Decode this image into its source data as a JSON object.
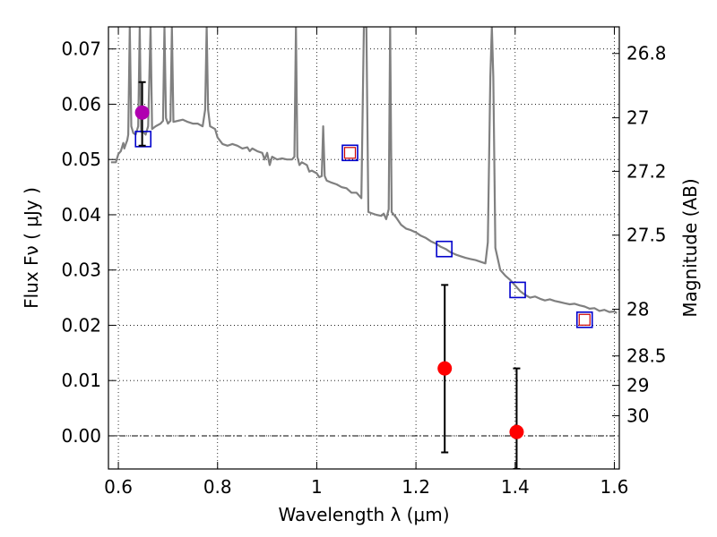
{
  "chart_data": {
    "type": "scatter",
    "xlabel": "Wavelength  λ (μm)",
    "ylabel": "Flux  Fν  ( μJy )",
    "y2label": "Magnitude (AB)",
    "xlim": [
      0.58,
      1.61
    ],
    "ylim": [
      -0.006,
      0.074
    ],
    "grid": true,
    "x_ticks": [
      0.6,
      0.8,
      1.0,
      1.2,
      1.4,
      1.6
    ],
    "x_tick_labels": [
      "0.6",
      "0.8",
      "1",
      "1.2",
      "1.4",
      "1.6"
    ],
    "y_ticks": [
      0.0,
      0.01,
      0.02,
      0.03,
      0.04,
      0.05,
      0.06,
      0.07
    ],
    "y_tick_labels": [
      "0.00",
      "0.01",
      "0.02",
      "0.03",
      "0.04",
      "0.05",
      "0.06",
      "0.07"
    ],
    "mag_ticks": [
      "26.8",
      "27",
      "27.2",
      "27.5",
      "28",
      "28.5",
      "29",
      "30"
    ],
    "colors": {
      "model": "#808080",
      "model_phot": "#0000cc",
      "model_phot_inner": "#cc0000",
      "detection": "#b000b0",
      "nondetection": "#ff0000",
      "errorbar": "#000000"
    },
    "series": [
      {
        "kind": "line",
        "points": [
          [
            0.585,
            0.0495
          ],
          [
            0.595,
            0.0495
          ],
          [
            0.6,
            0.051
          ],
          [
            0.605,
            0.0515
          ],
          [
            0.61,
            0.053
          ],
          [
            0.612,
            0.052
          ],
          [
            0.615,
            0.0528
          ],
          [
            0.618,
            0.0535
          ],
          [
            0.62,
            0.0545
          ],
          [
            0.623,
            0.074
          ],
          [
            0.626,
            0.056
          ],
          [
            0.63,
            0.0548
          ],
          [
            0.635,
            0.0545
          ],
          [
            0.64,
            0.056
          ],
          [
            0.643,
            0.074
          ],
          [
            0.646,
            0.055
          ],
          [
            0.65,
            0.055
          ],
          [
            0.655,
            0.0545
          ],
          [
            0.66,
            0.056
          ],
          [
            0.665,
            0.074
          ],
          [
            0.668,
            0.0555
          ],
          [
            0.675,
            0.056
          ],
          [
            0.685,
            0.0565
          ],
          [
            0.69,
            0.057
          ],
          [
            0.693,
            0.074
          ],
          [
            0.696,
            0.0575
          ],
          [
            0.7,
            0.0565
          ],
          [
            0.705,
            0.057
          ],
          [
            0.708,
            0.074
          ],
          [
            0.711,
            0.0568
          ],
          [
            0.72,
            0.057
          ],
          [
            0.73,
            0.0572
          ],
          [
            0.74,
            0.0568
          ],
          [
            0.75,
            0.0565
          ],
          [
            0.76,
            0.0565
          ],
          [
            0.77,
            0.056
          ],
          [
            0.775,
            0.059
          ],
          [
            0.778,
            0.074
          ],
          [
            0.781,
            0.059
          ],
          [
            0.785,
            0.056
          ],
          [
            0.795,
            0.0555
          ],
          [
            0.8,
            0.054
          ],
          [
            0.81,
            0.0528
          ],
          [
            0.82,
            0.0525
          ],
          [
            0.83,
            0.0528
          ],
          [
            0.84,
            0.0525
          ],
          [
            0.85,
            0.052
          ],
          [
            0.86,
            0.0522
          ],
          [
            0.865,
            0.0515
          ],
          [
            0.87,
            0.052
          ],
          [
            0.88,
            0.0515
          ],
          [
            0.89,
            0.0512
          ],
          [
            0.895,
            0.05
          ],
          [
            0.9,
            0.0512
          ],
          [
            0.905,
            0.049
          ],
          [
            0.91,
            0.0505
          ],
          [
            0.92,
            0.05
          ],
          [
            0.93,
            0.0502
          ],
          [
            0.94,
            0.05
          ],
          [
            0.95,
            0.05
          ],
          [
            0.955,
            0.0505
          ],
          [
            0.958,
            0.074
          ],
          [
            0.961,
            0.0505
          ],
          [
            0.965,
            0.049
          ],
          [
            0.97,
            0.0495
          ],
          [
            0.98,
            0.049
          ],
          [
            0.985,
            0.0478
          ],
          [
            0.99,
            0.048
          ],
          [
            1.0,
            0.0475
          ],
          [
            1.005,
            0.0468
          ],
          [
            1.01,
            0.047
          ],
          [
            1.013,
            0.056
          ],
          [
            1.016,
            0.047
          ],
          [
            1.02,
            0.0462
          ],
          [
            1.03,
            0.0458
          ],
          [
            1.04,
            0.0455
          ],
          [
            1.05,
            0.045
          ],
          [
            1.06,
            0.0448
          ],
          [
            1.07,
            0.044
          ],
          [
            1.08,
            0.044
          ],
          [
            1.085,
            0.0435
          ],
          [
            1.09,
            0.043
          ],
          [
            1.095,
            0.074
          ],
          [
            1.1,
            0.074
          ],
          [
            1.104,
            0.0405
          ],
          [
            1.11,
            0.0403
          ],
          [
            1.12,
            0.04
          ],
          [
            1.13,
            0.0398
          ],
          [
            1.135,
            0.0402
          ],
          [
            1.14,
            0.0392
          ],
          [
            1.145,
            0.041
          ],
          [
            1.148,
            0.074
          ],
          [
            1.151,
            0.0405
          ],
          [
            1.16,
            0.0395
          ],
          [
            1.17,
            0.0382
          ],
          [
            1.18,
            0.0375
          ],
          [
            1.19,
            0.0372
          ],
          [
            1.2,
            0.0368
          ],
          [
            1.21,
            0.0362
          ],
          [
            1.22,
            0.0358
          ],
          [
            1.23,
            0.0352
          ],
          [
            1.24,
            0.0348
          ],
          [
            1.25,
            0.0342
          ],
          [
            1.26,
            0.0338
          ],
          [
            1.27,
            0.0332
          ],
          [
            1.28,
            0.0328
          ],
          [
            1.29,
            0.0325
          ],
          [
            1.3,
            0.0322
          ],
          [
            1.31,
            0.032
          ],
          [
            1.32,
            0.0318
          ],
          [
            1.33,
            0.0315
          ],
          [
            1.34,
            0.0312
          ],
          [
            1.345,
            0.035
          ],
          [
            1.35,
            0.065
          ],
          [
            1.353,
            0.074
          ],
          [
            1.356,
            0.065
          ],
          [
            1.36,
            0.034
          ],
          [
            1.37,
            0.03
          ],
          [
            1.38,
            0.029
          ],
          [
            1.39,
            0.0282
          ],
          [
            1.4,
            0.0272
          ],
          [
            1.41,
            0.0262
          ],
          [
            1.42,
            0.0255
          ],
          [
            1.43,
            0.025
          ],
          [
            1.44,
            0.0252
          ],
          [
            1.45,
            0.0248
          ],
          [
            1.46,
            0.0245
          ],
          [
            1.47,
            0.0247
          ],
          [
            1.48,
            0.0244
          ],
          [
            1.49,
            0.0242
          ],
          [
            1.5,
            0.024
          ],
          [
            1.51,
            0.0238
          ],
          [
            1.52,
            0.0239
          ],
          [
            1.53,
            0.0236
          ],
          [
            1.54,
            0.0234
          ],
          [
            1.55,
            0.023
          ],
          [
            1.56,
            0.0231
          ],
          [
            1.57,
            0.0226
          ],
          [
            1.58,
            0.0228
          ],
          [
            1.59,
            0.0224
          ],
          [
            1.6,
            0.0225
          ],
          [
            1.605,
            0.0222
          ]
        ]
      },
      {
        "kind": "model_photometry",
        "points": [
          {
            "x": 0.65,
            "y": 0.0537,
            "inner": false
          },
          {
            "x": 1.067,
            "y": 0.0512,
            "inner": true
          },
          {
            "x": 1.257,
            "y": 0.0338,
            "inner": false
          },
          {
            "x": 1.405,
            "y": 0.0264,
            "inner": false
          },
          {
            "x": 1.54,
            "y": 0.021,
            "inner": true
          }
        ]
      },
      {
        "kind": "detection",
        "points": [
          {
            "x": 0.648,
            "y": 0.0585,
            "err_lo": 0.0525,
            "err_hi": 0.064
          }
        ]
      },
      {
        "kind": "measurement",
        "points": [
          {
            "x": 1.258,
            "y": 0.0122,
            "err_lo": -0.003,
            "err_hi": 0.0273
          },
          {
            "x": 1.403,
            "y": 0.0007,
            "err_lo": -0.006,
            "err_hi": 0.0122
          }
        ]
      }
    ]
  }
}
